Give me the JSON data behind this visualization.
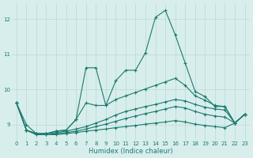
{
  "xlabel": "Humidex (Indice chaleur)",
  "background_color": "#d8eeec",
  "grid_color": "#b8d8d5",
  "line_color": "#1a7a6e",
  "xlim": [
    -0.5,
    23.5
  ],
  "ylim": [
    8.55,
    12.45
  ],
  "yticks": [
    9,
    10,
    11,
    12
  ],
  "xticks": [
    0,
    1,
    2,
    3,
    4,
    5,
    6,
    7,
    8,
    9,
    10,
    11,
    12,
    13,
    14,
    15,
    16,
    17,
    18,
    19,
    20,
    21,
    22,
    23
  ],
  "lines": [
    {
      "x": [
        0,
        1,
        2,
        3,
        4,
        5,
        6,
        7,
        8,
        9,
        10,
        11,
        12,
        13,
        14,
        15,
        16,
        17,
        18,
        19,
        20,
        21,
        22,
        23
      ],
      "y": [
        9.62,
        9.0,
        8.75,
        8.75,
        8.82,
        8.85,
        9.15,
        9.62,
        9.55,
        9.55,
        10.25,
        10.55,
        10.55,
        11.05,
        12.05,
        12.25,
        11.55,
        10.75,
        9.95,
        9.8,
        9.52,
        9.52,
        9.05,
        9.3
      ]
    },
    {
      "x": [
        0,
        1,
        2,
        3,
        4,
        5,
        6,
        7,
        8,
        9,
        10,
        11,
        12,
        13,
        14,
        15,
        16,
        17,
        18,
        19,
        20,
        21,
        22,
        23
      ],
      "y": [
        9.62,
        8.85,
        8.75,
        8.75,
        8.82,
        8.85,
        9.15,
        10.62,
        10.62,
        9.55,
        9.72,
        9.82,
        9.92,
        10.02,
        10.12,
        10.22,
        10.32,
        10.12,
        9.82,
        9.7,
        9.55,
        9.52,
        9.05,
        9.3
      ]
    },
    {
      "x": [
        0,
        1,
        2,
        3,
        4,
        5,
        6,
        7,
        8,
        9,
        10,
        11,
        12,
        13,
        14,
        15,
        16,
        17,
        18,
        19,
        20,
        21,
        22,
        23
      ],
      "y": [
        9.62,
        8.85,
        8.75,
        8.75,
        8.78,
        8.82,
        8.88,
        8.95,
        9.05,
        9.15,
        9.28,
        9.38,
        9.45,
        9.52,
        9.58,
        9.65,
        9.72,
        9.68,
        9.58,
        9.5,
        9.45,
        9.42,
        9.05,
        9.3
      ]
    },
    {
      "x": [
        0,
        1,
        2,
        3,
        4,
        5,
        6,
        7,
        8,
        9,
        10,
        11,
        12,
        13,
        14,
        15,
        16,
        17,
        18,
        19,
        20,
        21,
        22,
        23
      ],
      "y": [
        9.62,
        8.85,
        8.72,
        8.72,
        8.75,
        8.78,
        8.82,
        8.88,
        8.95,
        9.02,
        9.1,
        9.18,
        9.25,
        9.32,
        9.38,
        9.45,
        9.52,
        9.48,
        9.38,
        9.3,
        9.25,
        9.22,
        9.05,
        9.3
      ]
    },
    {
      "x": [
        0,
        1,
        2,
        3,
        4,
        5,
        6,
        7,
        8,
        9,
        10,
        11,
        12,
        13,
        14,
        15,
        16,
        17,
        18,
        19,
        20,
        21,
        22,
        23
      ],
      "y": [
        9.62,
        8.85,
        8.72,
        8.72,
        8.72,
        8.75,
        8.78,
        8.82,
        8.85,
        8.88,
        8.92,
        8.95,
        8.98,
        9.02,
        9.05,
        9.08,
        9.12,
        9.08,
        9.02,
        8.98,
        8.95,
        8.92,
        9.05,
        9.3
      ]
    }
  ]
}
